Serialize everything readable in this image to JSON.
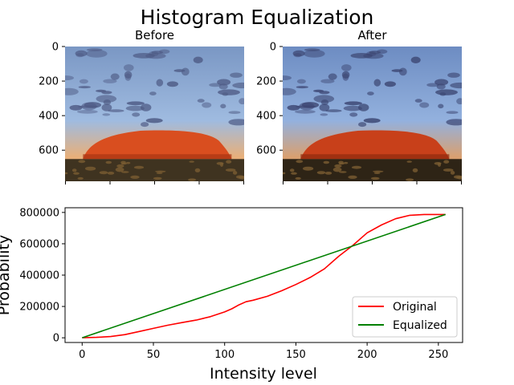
{
  "figure": {
    "title": "Histogram Equalization"
  },
  "chart_data": [
    {
      "type": "image",
      "title": "Before",
      "ylim": [
        780,
        0
      ],
      "yticks": [
        0,
        200,
        400,
        600
      ],
      "xtick_count": 5,
      "palette": {
        "sky_top": "#7a97c4",
        "sky_mid": "#9fbbe0",
        "horizon": "#e8b07a",
        "rock": "#d94e1f",
        "rock_shadow": "#a83412",
        "ground": "#3f3320",
        "clouds": "#4e5a84"
      }
    },
    {
      "type": "image",
      "title": "After",
      "ylim": [
        780,
        0
      ],
      "yticks": [
        0,
        200,
        400,
        600
      ],
      "xtick_count": 5,
      "palette": {
        "sky_top": "#6d8cc2",
        "sky_mid": "#93b1de",
        "horizon": "#d9a070",
        "rock": "#c8401a",
        "rock_shadow": "#8e2a0e",
        "ground": "#2e2416",
        "clouds": "#3c4672"
      }
    },
    {
      "type": "line",
      "title": "",
      "xlabel": "Intensity level",
      "ylabel": "Probability",
      "xlim": [
        -12,
        267
      ],
      "ylim": [
        -30000,
        830000
      ],
      "xticks": [
        0,
        50,
        100,
        150,
        200,
        250
      ],
      "yticks": [
        0,
        200000,
        400000,
        600000,
        800000
      ],
      "grid": false,
      "legend": "lower-right",
      "series": [
        {
          "name": "Original",
          "color": "#ff0000",
          "x": [
            0,
            10,
            20,
            30,
            40,
            50,
            60,
            70,
            80,
            90,
            100,
            105,
            110,
            115,
            120,
            130,
            140,
            150,
            160,
            170,
            180,
            190,
            200,
            210,
            220,
            230,
            240,
            250,
            255
          ],
          "y": [
            0,
            3000,
            8000,
            20000,
            40000,
            60000,
            80000,
            97000,
            113000,
            135000,
            165000,
            185000,
            210000,
            230000,
            240000,
            265000,
            300000,
            340000,
            385000,
            440000,
            520000,
            590000,
            670000,
            720000,
            760000,
            782000,
            787000,
            787000,
            787000
          ]
        },
        {
          "name": "Equalized",
          "color": "#008000",
          "x": [
            0,
            255
          ],
          "y": [
            0,
            787000
          ]
        }
      ]
    }
  ]
}
